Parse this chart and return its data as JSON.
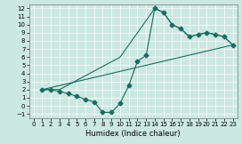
{
  "xlabel": "Humidex (Indice chaleur)",
  "xlim": [
    -0.5,
    23.5
  ],
  "ylim": [
    -1.5,
    12.5
  ],
  "xticks": [
    0,
    1,
    2,
    3,
    4,
    5,
    6,
    7,
    8,
    9,
    10,
    11,
    12,
    13,
    14,
    15,
    16,
    17,
    18,
    19,
    20,
    21,
    22,
    23
  ],
  "yticks": [
    -1,
    0,
    1,
    2,
    3,
    4,
    5,
    6,
    7,
    8,
    9,
    10,
    11,
    12
  ],
  "bg_color": "#cce8e2",
  "line_color": "#1a6b60",
  "grid_color": "#ffffff",
  "line1_x": [
    1,
    2,
    3,
    4,
    5,
    6,
    7,
    8,
    9,
    10,
    11,
    12,
    13,
    14,
    15,
    16,
    17,
    18,
    19,
    20,
    21,
    22,
    23
  ],
  "line1_y": [
    2,
    2,
    1.8,
    1.5,
    1.2,
    0.8,
    0.5,
    -0.8,
    -0.8,
    0.3,
    2.5,
    5.5,
    6.2,
    12.0,
    11.5,
    10.0,
    9.5,
    8.5,
    8.8,
    9.0,
    8.8,
    8.5,
    7.5
  ],
  "line2_x": [
    1,
    3,
    10,
    14,
    15,
    16,
    17,
    18,
    19,
    20,
    21,
    22,
    23
  ],
  "line2_y": [
    2,
    2,
    6.0,
    12.0,
    11.5,
    10.0,
    9.5,
    8.5,
    8.8,
    9.0,
    8.8,
    8.5,
    7.5
  ],
  "line3_x": [
    1,
    23
  ],
  "line3_y": [
    2,
    7.5
  ],
  "markersize": 2.5
}
